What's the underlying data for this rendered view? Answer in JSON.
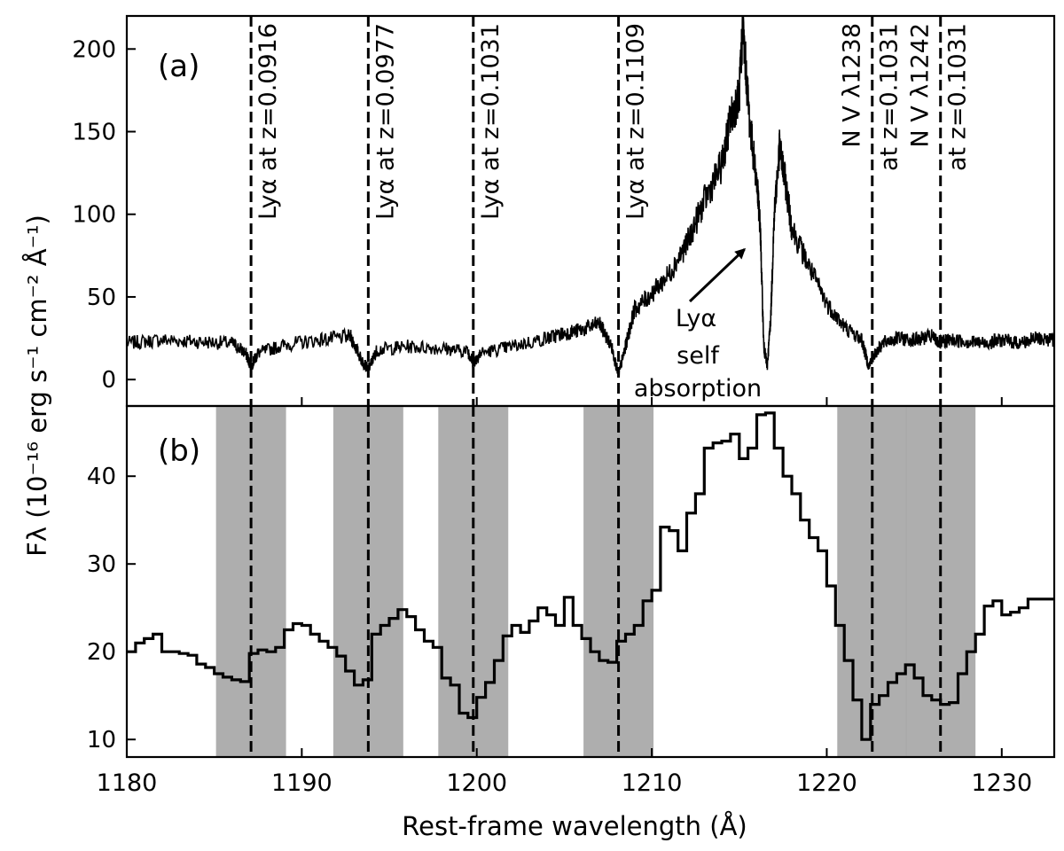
{
  "chart_data": [
    {
      "panel_label": "(a)",
      "type": "line",
      "ylim": [
        -16,
        220
      ],
      "yticks": [
        0,
        50,
        100,
        150,
        200
      ],
      "xlim": [
        1180,
        1233
      ],
      "grid": false,
      "series": [
        {
          "x": [
            1180,
            1182,
            1184,
            1186,
            1186.8,
            1187.1,
            1187.5,
            1189,
            1191,
            1192.8,
            1193.4,
            1193.8,
            1194.3,
            1196,
            1198,
            1199.5,
            1199.8,
            1200.2,
            1202,
            1204,
            1205,
            1206,
            1207,
            1207.7,
            1208.1,
            1208.5,
            1209,
            1210,
            1211,
            1212,
            1213,
            1214,
            1214.5,
            1215.0,
            1215.2,
            1215.6,
            1216.0,
            1216.2,
            1216.4,
            1216.6,
            1216.8,
            1217.0,
            1217.3,
            1217.6,
            1218,
            1219,
            1220,
            1221,
            1222,
            1222.4,
            1222.7,
            1223.2,
            1224,
            1225,
            1226,
            1226.5,
            1227,
            1228,
            1229,
            1230,
            1231,
            1232,
            1233
          ],
          "y": [
            22,
            24,
            23,
            22,
            16,
            8,
            16,
            21,
            24,
            26,
            12,
            6,
            18,
            20,
            19,
            17,
            10,
            16,
            20,
            25,
            28,
            30,
            34,
            20,
            3,
            20,
            42,
            52,
            64,
            82,
            108,
            130,
            158,
            172,
            214,
            155,
            120,
            92,
            20,
            8,
            38,
            100,
            140,
            122,
            92,
            68,
            46,
            32,
            24,
            8,
            15,
            22,
            25,
            24,
            26,
            22,
            24,
            23,
            22,
            24,
            22,
            25,
            24
          ]
        }
      ],
      "reference_lines": [
        {
          "x": 1187.1,
          "label": "Lyα at z=0.0916"
        },
        {
          "x": 1193.8,
          "label": "Lyα at z=0.0977"
        },
        {
          "x": 1199.8,
          "label": "Lyα at z=0.1031"
        },
        {
          "x": 1208.1,
          "label": "Lyα at z=0.1109"
        },
        {
          "x": 1222.6,
          "label_line1": "N V λ1238",
          "label_line2": "at z=0.1031"
        },
        {
          "x": 1226.5,
          "label_line1": "N V λ1242",
          "label_line2": "at z=0.1031"
        }
      ],
      "annotation": {
        "lines": [
          "Lyα",
          "self",
          "absorption"
        ],
        "arrow_target": {
          "x": 1215.7,
          "y": 82
        }
      }
    },
    {
      "panel_label": "(b)",
      "type": "line",
      "style": "step",
      "xlim": [
        1180,
        1233
      ],
      "ylim": [
        8,
        48
      ],
      "yticks": [
        10,
        20,
        30,
        40
      ],
      "xticks": [
        1180,
        1190,
        1200,
        1210,
        1220,
        1230
      ],
      "xlabel": "Rest-frame wavelength (Å)",
      "ylabel": "Fλ (10⁻¹⁶ erg s⁻¹ cm⁻² Å⁻¹)",
      "shaded_regions": [
        [
          1185.1,
          1189.1
        ],
        [
          1191.8,
          1195.8
        ],
        [
          1197.8,
          1201.8
        ],
        [
          1206.1,
          1210.1
        ],
        [
          1220.6,
          1224.6
        ],
        [
          1224.5,
          1228.5
        ]
      ],
      "reference_lines": [
        1187.1,
        1193.8,
        1199.8,
        1208.1,
        1222.6,
        1226.5
      ],
      "series": [
        {
          "x": [
            1180,
            1180.5,
            1181,
            1181.5,
            1182,
            1182.5,
            1183,
            1183.5,
            1184,
            1184.5,
            1185,
            1185.5,
            1186,
            1186.5,
            1187,
            1187.5,
            1188,
            1188.5,
            1189,
            1189.5,
            1190,
            1190.5,
            1191,
            1191.5,
            1192,
            1192.5,
            1193,
            1193.5,
            1194,
            1194.5,
            1195,
            1195.5,
            1196,
            1196.5,
            1197,
            1197.5,
            1198,
            1198.5,
            1199,
            1199.5,
            1200,
            1200.5,
            1201,
            1201.5,
            1202,
            1202.5,
            1203,
            1203.5,
            1204,
            1204.5,
            1205,
            1205.5,
            1206,
            1206.5,
            1207,
            1207.5,
            1208,
            1208.5,
            1209,
            1209.5,
            1210,
            1210.5,
            1211,
            1211.5,
            1212,
            1212.5,
            1213,
            1213.5,
            1214,
            1214.5,
            1215,
            1215.5,
            1216,
            1216.5,
            1217,
            1217.5,
            1218,
            1218.5,
            1219,
            1219.5,
            1220,
            1220.5,
            1221,
            1221.5,
            1222,
            1222.5,
            1223,
            1223.5,
            1224,
            1224.5,
            1225,
            1225.5,
            1226,
            1226.5,
            1227,
            1227.5,
            1228,
            1228.5,
            1229,
            1229.5,
            1230,
            1230.5,
            1231,
            1231.5,
            1232,
            1232.5
          ],
          "y": [
            20,
            21,
            21.5,
            22,
            20,
            20,
            19.8,
            19.6,
            18.6,
            18.2,
            17.5,
            17.1,
            16.8,
            16.6,
            19.8,
            20.2,
            20.0,
            20.5,
            22.5,
            23.2,
            23.0,
            22.0,
            21.2,
            20.5,
            19.5,
            17.8,
            16.2,
            16.8,
            22.0,
            23.0,
            23.8,
            24.8,
            24.0,
            22.5,
            21.2,
            20.5,
            17.0,
            16.2,
            13.0,
            12.5,
            14.8,
            16.5,
            19.0,
            21.8,
            23.0,
            22.2,
            23.5,
            25.0,
            24.2,
            23.0,
            26.2,
            23.0,
            21.5,
            20.0,
            19.0,
            18.8,
            21.2,
            22.0,
            23.0,
            25.8,
            27.0,
            34.2,
            33.8,
            31.5,
            35.8,
            38.0,
            43.2,
            43.8,
            44.0,
            44.8,
            42.0,
            43.2,
            47.0,
            47.2,
            43.2,
            40.0,
            38.0,
            35.0,
            33.0,
            31.5,
            27.5,
            23.0,
            19.0,
            14.5,
            10.0,
            14.0,
            15.0,
            16.5,
            17.5,
            18.5,
            17.0,
            15.0,
            14.5,
            14.0,
            14.2,
            17.5,
            20.0,
            22.0,
            25.2,
            25.8,
            24.2,
            24.5,
            25.0,
            26.0,
            26.0,
            26.0
          ]
        }
      ]
    }
  ]
}
